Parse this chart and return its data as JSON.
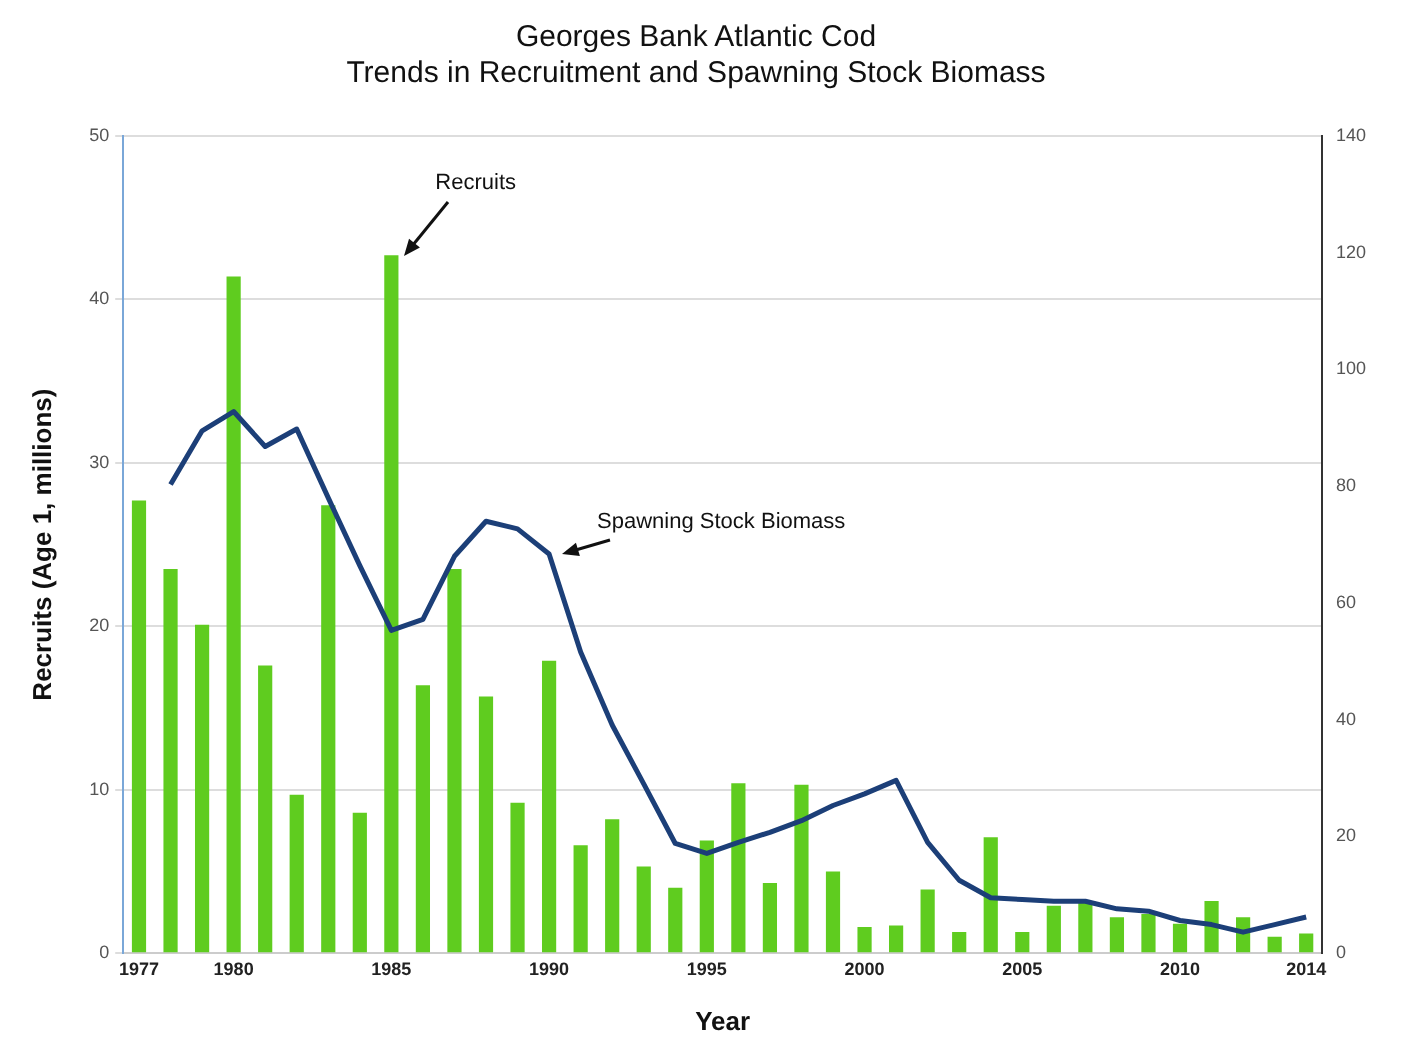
{
  "chart_data": {
    "type": "bar",
    "title": [
      "Georges Bank Atlantic Cod",
      "Trends in Recruitment and Spawning Stock Biomass"
    ],
    "xlabel": "Year",
    "ylabel": "Recruits (Age 1, millions)",
    "categories": [
      "1977",
      null,
      null,
      "1980",
      null,
      null,
      null,
      null,
      "1985",
      null,
      null,
      null,
      null,
      "1990",
      null,
      null,
      null,
      null,
      "1995",
      null,
      null,
      null,
      null,
      "2000",
      null,
      null,
      null,
      null,
      "2005",
      null,
      null,
      null,
      null,
      "2010",
      null,
      null,
      null,
      "2014"
    ],
    "series": [
      {
        "name": "Recruits",
        "color": "#5fcc1f",
        "values": [
          27.7,
          23.5,
          20.1,
          41.4,
          17.6,
          9.7,
          27.4,
          8.6,
          42.7,
          16.4,
          23.5,
          15.7,
          9.2,
          17.9,
          6.6,
          8.2,
          5.3,
          4.0,
          6.9,
          10.4,
          4.3,
          10.3,
          5.0,
          1.6,
          1.7,
          3.9,
          1.3,
          7.1,
          1.3,
          2.9,
          3.2,
          2.2,
          2.4,
          1.8,
          3.2,
          2.2,
          1.0,
          1.2
        ]
      },
      {
        "name": "Spawning Stock Biomass",
        "type": "line",
        "axis": "y2",
        "color": "#1c3f78",
        "values": [
          null,
          80.3,
          89.5,
          92.8,
          86.8,
          89.8,
          78,
          66.4,
          55.3,
          57.2,
          68,
          74,
          72.7,
          68.4,
          51.6,
          39.1,
          29,
          18.8,
          17.1,
          19,
          20.7,
          22.7,
          25.3,
          27.3,
          29.6,
          19,
          12.5,
          9.5,
          9.2,
          8.9,
          8.9,
          7.6,
          7.2,
          5.6,
          4.9,
          3.6,
          4.9,
          6.2
        ]
      }
    ],
    "ylim": [
      0,
      50
    ],
    "yticks": [
      0,
      10,
      20,
      30,
      40,
      50
    ],
    "y2lim": [
      0,
      140
    ],
    "y2ticks": [
      0,
      20,
      40,
      60,
      80,
      100,
      120,
      140
    ],
    "grid": "y",
    "legend": false,
    "marker": "none",
    "line_style": "solid"
  }
}
